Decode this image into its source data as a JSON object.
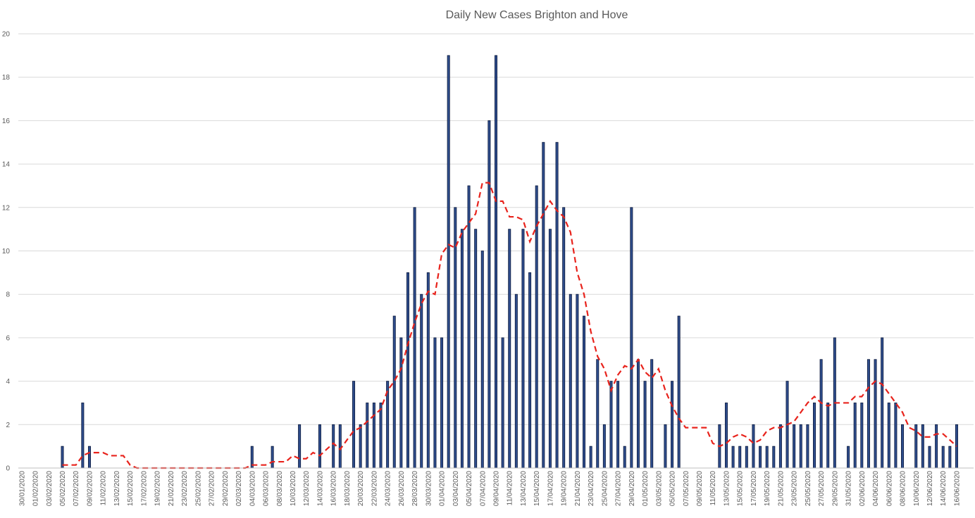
{
  "chart_data": {
    "type": "bar",
    "title": "Daily New Cases Brighton and Hove",
    "xlabel": "",
    "ylabel": "",
    "ylim": [
      0,
      20
    ],
    "yticks": [
      0,
      2,
      4,
      6,
      8,
      10,
      12,
      14,
      16,
      18,
      20
    ],
    "grid": true,
    "legend": "none",
    "start_date": "30/01/2020",
    "x_tick_labels": [
      "30/01/2020",
      "01/02/2020",
      "03/02/2020",
      "05/02/2020",
      "07/02/2020",
      "09/02/2020",
      "11/02/2020",
      "13/02/2020",
      "15/02/2020",
      "17/02/2020",
      "19/02/2020",
      "21/02/2020",
      "23/02/2020",
      "25/02/2020",
      "27/02/2020",
      "29/02/2020",
      "02/03/2020",
      "04/03/2020",
      "06/03/2020",
      "08/03/2020",
      "10/03/2020",
      "12/03/2020",
      "14/03/2020",
      "16/03/2020",
      "18/03/2020",
      "20/03/2020",
      "22/03/2020",
      "24/03/2020",
      "26/03/2020",
      "28/03/2020",
      "30/03/2020",
      "01/04/2020",
      "03/04/2020",
      "05/04/2020",
      "07/04/2020",
      "09/04/2020",
      "11/04/2020",
      "13/04/2020",
      "15/04/2020",
      "17/04/2020",
      "19/04/2020",
      "21/04/2020",
      "23/04/2020",
      "25/04/2020",
      "27/04/2020",
      "29/04/2020",
      "01/05/2020",
      "03/05/2020",
      "05/05/2020",
      "07/05/2020",
      "09/05/2020",
      "11/05/2020",
      "13/05/2020",
      "15/05/2020",
      "17/05/2020",
      "19/05/2020",
      "21/05/2020",
      "23/05/2020",
      "25/05/2020",
      "27/05/2020",
      "29/05/2020",
      "31/05/2020",
      "02/06/2020",
      "04/06/2020",
      "06/06/2020",
      "08/06/2020",
      "10/06/2020",
      "12/06/2020",
      "14/06/2020",
      "16/06/2020"
    ],
    "series": [
      {
        "type": "bar",
        "values": [
          0,
          0,
          0,
          0,
          0,
          0,
          1,
          0,
          0,
          3,
          1,
          0,
          0,
          0,
          0,
          0,
          0,
          0,
          0,
          0,
          0,
          0,
          0,
          0,
          0,
          0,
          0,
          0,
          0,
          0,
          0,
          0,
          0,
          0,
          1,
          0,
          0,
          1,
          0,
          0,
          0,
          2,
          0,
          0,
          2,
          0,
          2,
          2,
          0,
          4,
          2,
          3,
          3,
          3,
          4,
          7,
          6,
          9,
          12,
          8,
          9,
          6,
          6,
          19,
          12,
          11,
          13,
          11,
          10,
          16,
          19,
          6,
          11,
          8,
          11,
          9,
          13,
          15,
          11,
          15,
          12,
          8,
          8,
          7,
          1,
          5,
          2,
          4,
          4,
          1,
          12,
          5,
          4,
          5,
          0,
          2,
          4,
          7,
          0,
          0,
          0,
          0,
          0,
          2,
          3,
          1,
          1,
          1,
          2,
          1,
          1,
          1,
          2,
          4,
          2,
          2,
          2,
          3,
          5,
          3,
          6,
          0,
          1,
          3,
          3,
          5,
          5,
          6,
          3,
          3,
          2,
          0,
          2,
          2,
          1,
          2,
          1,
          1,
          2,
          0,
          0
        ]
      },
      {
        "type": "line",
        "style": "dashed",
        "color": "#e8231c",
        "values": [
          null,
          null,
          null,
          null,
          null,
          null,
          0.14,
          0.14,
          0.14,
          0.57,
          0.71,
          0.71,
          0.71,
          0.57,
          0.57,
          0.57,
          0.14,
          0,
          0,
          0,
          0,
          0,
          0,
          0,
          0,
          0,
          0,
          0,
          0,
          0,
          0,
          0,
          0,
          0,
          0.14,
          0.14,
          0.14,
          0.29,
          0.29,
          0.29,
          0.57,
          0.43,
          0.43,
          0.71,
          0.57,
          0.86,
          1.14,
          0.86,
          1.29,
          1.71,
          1.86,
          2.14,
          2.43,
          2.71,
          3.57,
          4,
          4.57,
          5.71,
          6.71,
          7.57,
          8.14,
          8,
          9.86,
          10.29,
          10.14,
          10.86,
          11.29,
          11.71,
          13.14,
          13.14,
          12.29,
          12.29,
          11.57,
          11.57,
          11.43,
          10.43,
          11.14,
          11.71,
          12.29,
          11.86,
          11.57,
          10.86,
          9,
          8,
          6.29,
          5.14,
          4.57,
          3.57,
          4.29,
          4.71,
          4.57,
          5,
          4.43,
          4.14,
          4.57,
          3.57,
          2.86,
          2.29,
          1.86,
          1.86,
          1.86,
          1.86,
          1.14,
          1,
          1.14,
          1.43,
          1.57,
          1.43,
          1.14,
          1.29,
          1.71,
          1.86,
          1.86,
          2,
          2.14,
          2.57,
          3,
          3.29,
          3,
          2.86,
          3,
          3,
          3,
          3.29,
          3.29,
          3.71,
          4,
          3.86,
          3.43,
          3,
          2.57,
          1.86,
          1.71,
          1.43,
          1.43,
          1.57,
          1.57,
          1.29,
          1
        ]
      }
    ]
  }
}
